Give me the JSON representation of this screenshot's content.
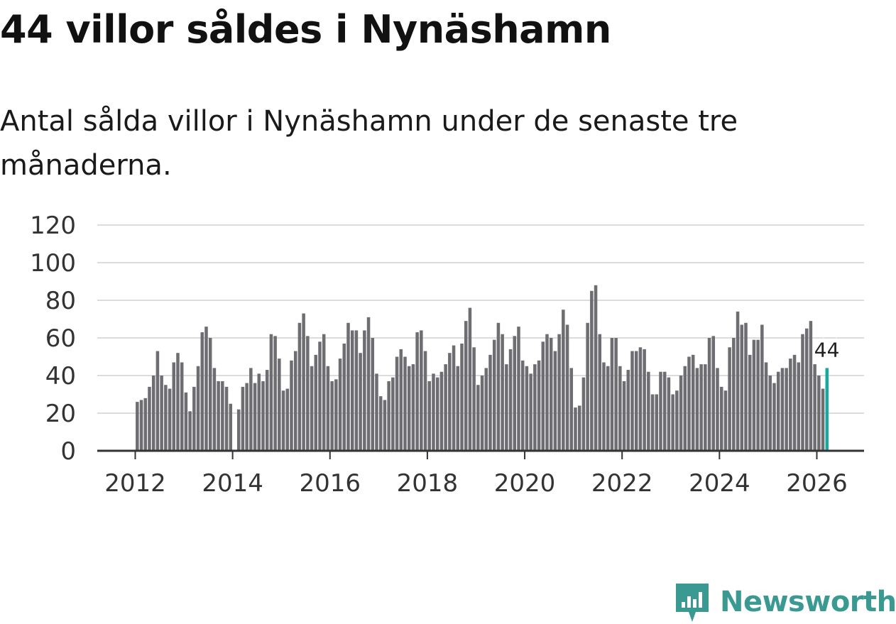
{
  "header": {
    "title": "44 villor såldes i Nynäshamn",
    "subtitle": "Antal sålda villor i Nynäshamn under de senaste tre månaderna."
  },
  "brand": {
    "name": "Newsworthy",
    "color": "#3a9a92"
  },
  "colors": {
    "bar": "#6e6d72",
    "highlight": "#19a89e",
    "grid": "#dcdcdc",
    "axis": "#333333"
  },
  "chart_data": {
    "type": "bar",
    "title": "",
    "xlabel": "",
    "ylabel": "",
    "ylim": [
      0,
      120
    ],
    "yticks": [
      0,
      20,
      40,
      60,
      80,
      100,
      120
    ],
    "xticks": [
      2012,
      2014,
      2016,
      2018,
      2020,
      2022,
      2024,
      2026
    ],
    "x_start": "2012-01",
    "x_end": "2026-03",
    "highlight_label": "44",
    "values": [
      26,
      27,
      28,
      34,
      40,
      53,
      40,
      35,
      33,
      47,
      52,
      47,
      31,
      21,
      34,
      45,
      63,
      66,
      60,
      44,
      37,
      37,
      34,
      25,
      0,
      22,
      34,
      36,
      44,
      36,
      41,
      37,
      43,
      62,
      61,
      49,
      32,
      33,
      48,
      53,
      68,
      73,
      61,
      45,
      51,
      58,
      62,
      45,
      37,
      38,
      49,
      57,
      68,
      64,
      64,
      52,
      64,
      71,
      60,
      41,
      29,
      27,
      37,
      39,
      50,
      54,
      50,
      45,
      46,
      63,
      64,
      53,
      37,
      41,
      39,
      42,
      46,
      52,
      56,
      45,
      57,
      69,
      76,
      55,
      35,
      40,
      44,
      51,
      59,
      68,
      62,
      46,
      54,
      61,
      66,
      48,
      45,
      41,
      46,
      48,
      58,
      62,
      60,
      53,
      62,
      75,
      67,
      44,
      23,
      24,
      39,
      68,
      85,
      88,
      62,
      47,
      45,
      60,
      60,
      45,
      37,
      43,
      53,
      53,
      55,
      54,
      42,
      30,
      30,
      42,
      42,
      39,
      30,
      32,
      40,
      45,
      50,
      51,
      44,
      46,
      46,
      60,
      61,
      44,
      34,
      32,
      55,
      60,
      74,
      67,
      68,
      51,
      59,
      59,
      67,
      47,
      40,
      36,
      42,
      44,
      44,
      49,
      51,
      47,
      62,
      65,
      69,
      46,
      40,
      33,
      44
    ]
  }
}
